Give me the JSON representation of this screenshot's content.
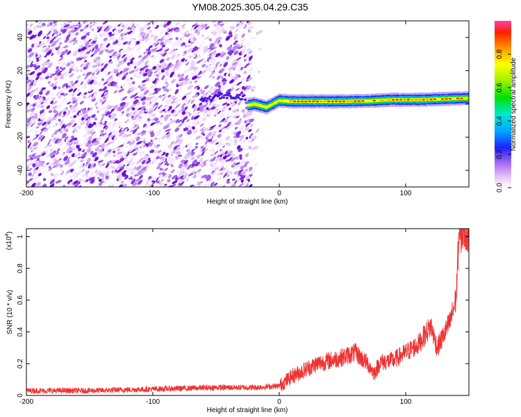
{
  "title": "YM08.2025.305.04.29.C35",
  "chart_data": [
    {
      "type": "heatmap",
      "xlabel": "Height of straight line (km)",
      "ylabel": "Frequency (Hz)",
      "xlim": [
        -200,
        150
      ],
      "ylim": [
        -50,
        50
      ],
      "xticks": [
        -200,
        -100,
        0,
        100
      ],
      "yticks": [
        -40,
        -20,
        0,
        20,
        40
      ],
      "signal_track": {
        "description_points_x": [
          -25,
          -20,
          -10,
          -5,
          0,
          10,
          30,
          50,
          70,
          90,
          110,
          130,
          150
        ],
        "frequency_hz": [
          -1,
          0,
          -2,
          0,
          2,
          1.5,
          1.5,
          1.5,
          1.8,
          2.5,
          2.5,
          3,
          3.5
        ]
      },
      "colorbar": {
        "label": "Normalized spectral amplitude",
        "ticks": [
          0.0,
          0.2,
          0.4,
          0.6,
          0.8
        ],
        "range": [
          0,
          1
        ]
      }
    },
    {
      "type": "line",
      "xlabel": "Height of straight line (km)",
      "ylabel": "SNR (10 * v/v)",
      "scale_label": "(x10",
      "scale_exponent": "4",
      "xlim": [
        -200,
        150
      ],
      "ylim": [
        0,
        1.05
      ],
      "xticks": [
        -200,
        -100,
        0,
        100
      ],
      "yticks": [
        0.0,
        0.2,
        0.4,
        0.6,
        0.8,
        1.0
      ],
      "series": [
        {
          "name": "SNR",
          "color": "#ee3333",
          "x": [
            -200,
            -150,
            -100,
            -50,
            -20,
            0,
            10,
            20,
            30,
            40,
            50,
            60,
            70,
            75,
            80,
            90,
            100,
            110,
            115,
            120,
            123,
            125,
            130,
            135,
            138,
            140,
            142,
            145,
            150
          ],
          "y": [
            0.03,
            0.03,
            0.04,
            0.05,
            0.05,
            0.06,
            0.12,
            0.16,
            0.2,
            0.22,
            0.24,
            0.27,
            0.2,
            0.14,
            0.21,
            0.22,
            0.27,
            0.32,
            0.38,
            0.44,
            0.35,
            0.3,
            0.38,
            0.46,
            0.55,
            0.62,
            1.0,
            1.02,
            1.02
          ]
        }
      ]
    }
  ]
}
